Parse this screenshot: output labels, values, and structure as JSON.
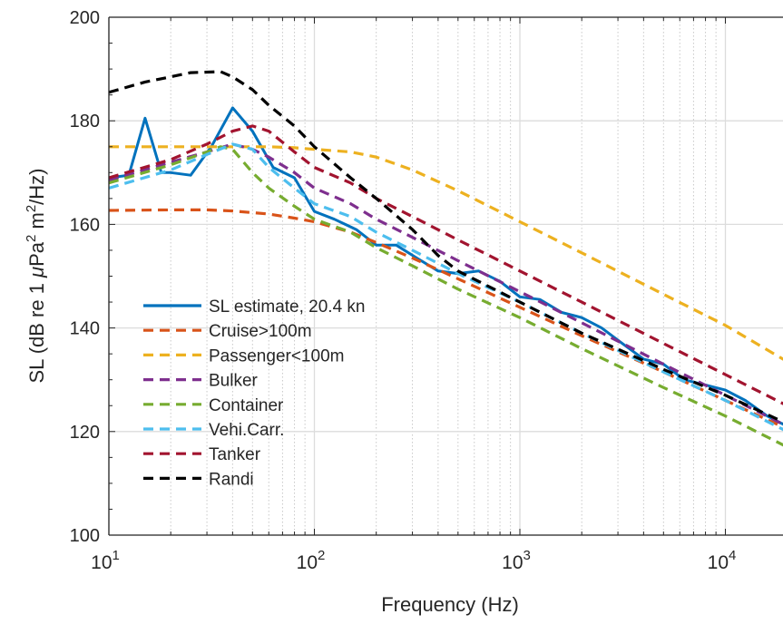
{
  "chart_data": {
    "type": "line",
    "xscale": "log",
    "xlim": [
      10,
      20000
    ],
    "ylim": [
      100,
      200
    ],
    "grid": true,
    "xlabel": "Frequency (Hz)",
    "ylabel_parts": [
      "SL (dB re 1 ",
      "μ",
      "Pa",
      "2",
      " m",
      "2",
      "/Hz)"
    ],
    "xticks": [
      {
        "base": "10",
        "exp": "1",
        "value": 10
      },
      {
        "base": "10",
        "exp": "2",
        "value": 100
      },
      {
        "base": "10",
        "exp": "3",
        "value": 1000
      },
      {
        "base": "10",
        "exp": "4",
        "value": 10000
      }
    ],
    "yticks": [
      "100",
      "120",
      "140",
      "160",
      "180",
      "200"
    ],
    "legend_position": "lower-left",
    "series": [
      {
        "name": "SL estimate, 20.4 kn",
        "color": "#0072BD",
        "dash": "solid",
        "points": [
          [
            10,
            169
          ],
          [
            12.5,
            169.5
          ],
          [
            15,
            180.5
          ],
          [
            18,
            170
          ],
          [
            20,
            170
          ],
          [
            25,
            169.5
          ],
          [
            31.5,
            175
          ],
          [
            40,
            182.5
          ],
          [
            50,
            178
          ],
          [
            63,
            171
          ],
          [
            80,
            169
          ],
          [
            100,
            162.5
          ],
          [
            125,
            161
          ],
          [
            160,
            159
          ],
          [
            200,
            156
          ],
          [
            250,
            156
          ],
          [
            315,
            153.5
          ],
          [
            400,
            151
          ],
          [
            500,
            150.5
          ],
          [
            630,
            151
          ],
          [
            800,
            149
          ],
          [
            1000,
            146
          ],
          [
            1250,
            145.5
          ],
          [
            1600,
            143
          ],
          [
            2000,
            142
          ],
          [
            2500,
            140
          ],
          [
            3150,
            137
          ],
          [
            4000,
            134
          ],
          [
            5000,
            133
          ],
          [
            6300,
            130
          ],
          [
            8000,
            129
          ],
          [
            10000,
            128
          ],
          [
            12500,
            126
          ],
          [
            16000,
            123
          ],
          [
            20000,
            121
          ]
        ]
      },
      {
        "name": "Cruise>100m",
        "color": "#D95319",
        "dash": "dashed",
        "points": [
          [
            10,
            162.7
          ],
          [
            20,
            162.8
          ],
          [
            30,
            162.8
          ],
          [
            40,
            162.6
          ],
          [
            60,
            162
          ],
          [
            80,
            161.2
          ],
          [
            100,
            160.5
          ],
          [
            150,
            158.5
          ],
          [
            200,
            156.5
          ],
          [
            300,
            153.5
          ],
          [
            500,
            149.5
          ],
          [
            1000,
            144
          ],
          [
            2000,
            138.5
          ],
          [
            5000,
            131.5
          ],
          [
            10000,
            126
          ],
          [
            20000,
            120.5
          ]
        ]
      },
      {
        "name": "Passenger<100m",
        "color": "#EDB120",
        "dash": "dashed",
        "points": [
          [
            10,
            175
          ],
          [
            20,
            175
          ],
          [
            40,
            175
          ],
          [
            60,
            175
          ],
          [
            80,
            174.8
          ],
          [
            100,
            174.5
          ],
          [
            150,
            174
          ],
          [
            200,
            173
          ],
          [
            300,
            170.5
          ],
          [
            500,
            166.5
          ],
          [
            1000,
            160.5
          ],
          [
            2000,
            154.5
          ],
          [
            5000,
            146.5
          ],
          [
            10000,
            140.5
          ],
          [
            20000,
            133.5
          ]
        ]
      },
      {
        "name": "Bulker",
        "color": "#7E2F8E",
        "dash": "dashed",
        "points": [
          [
            10,
            168.5
          ],
          [
            20,
            172
          ],
          [
            30,
            174
          ],
          [
            40,
            175.5
          ],
          [
            50,
            174.5
          ],
          [
            60,
            173
          ],
          [
            80,
            170
          ],
          [
            100,
            167
          ],
          [
            150,
            164
          ],
          [
            200,
            161
          ],
          [
            300,
            157.5
          ],
          [
            500,
            153
          ],
          [
            1000,
            147
          ],
          [
            2000,
            141
          ],
          [
            5000,
            133
          ],
          [
            10000,
            127
          ],
          [
            20000,
            121
          ]
        ]
      },
      {
        "name": "Container",
        "color": "#77AC30",
        "dash": "dashed",
        "points": [
          [
            10,
            168
          ],
          [
            20,
            171.5
          ],
          [
            30,
            174
          ],
          [
            35,
            175
          ],
          [
            40,
            174.5
          ],
          [
            50,
            170
          ],
          [
            60,
            167
          ],
          [
            80,
            163.5
          ],
          [
            100,
            161
          ],
          [
            150,
            158.5
          ],
          [
            200,
            155.5
          ],
          [
            300,
            152
          ],
          [
            500,
            147.5
          ],
          [
            1000,
            142
          ],
          [
            2000,
            136
          ],
          [
            5000,
            128.5
          ],
          [
            10000,
            123
          ],
          [
            20000,
            117
          ]
        ]
      },
      {
        "name": "Vehi.Carr.",
        "color": "#4DBEEE",
        "dash": "dashed",
        "points": [
          [
            10,
            167
          ],
          [
            20,
            170.5
          ],
          [
            30,
            173.5
          ],
          [
            40,
            175.5
          ],
          [
            50,
            174.5
          ],
          [
            60,
            171
          ],
          [
            80,
            167
          ],
          [
            100,
            164
          ],
          [
            150,
            161.5
          ],
          [
            200,
            158.5
          ],
          [
            300,
            155
          ],
          [
            500,
            150.5
          ],
          [
            1000,
            145
          ],
          [
            2000,
            139
          ],
          [
            5000,
            131.5
          ],
          [
            10000,
            126
          ],
          [
            20000,
            120
          ]
        ]
      },
      {
        "name": "Tanker",
        "color": "#A2142F",
        "dash": "dashed",
        "points": [
          [
            10,
            169
          ],
          [
            20,
            172.5
          ],
          [
            30,
            175.5
          ],
          [
            40,
            178
          ],
          [
            50,
            179
          ],
          [
            60,
            178
          ],
          [
            80,
            174
          ],
          [
            100,
            171
          ],
          [
            150,
            168
          ],
          [
            200,
            165
          ],
          [
            300,
            161.5
          ],
          [
            500,
            157
          ],
          [
            1000,
            151
          ],
          [
            2000,
            145
          ],
          [
            5000,
            137
          ],
          [
            10000,
            131
          ],
          [
            20000,
            125
          ]
        ]
      },
      {
        "name": "Randi",
        "color": "#000000",
        "dash": "dashed",
        "points": [
          [
            10,
            185.5
          ],
          [
            15,
            187.5
          ],
          [
            20,
            188.5
          ],
          [
            25,
            189.3
          ],
          [
            35,
            189.5
          ],
          [
            40,
            188.5
          ],
          [
            50,
            186
          ],
          [
            60,
            183
          ],
          [
            80,
            179
          ],
          [
            100,
            175
          ],
          [
            150,
            169
          ],
          [
            200,
            165
          ],
          [
            300,
            159
          ],
          [
            400,
            154
          ],
          [
            500,
            151
          ],
          [
            1000,
            145
          ],
          [
            2000,
            139
          ],
          [
            5000,
            132
          ],
          [
            10000,
            127
          ],
          [
            20000,
            121.5
          ]
        ]
      }
    ]
  }
}
